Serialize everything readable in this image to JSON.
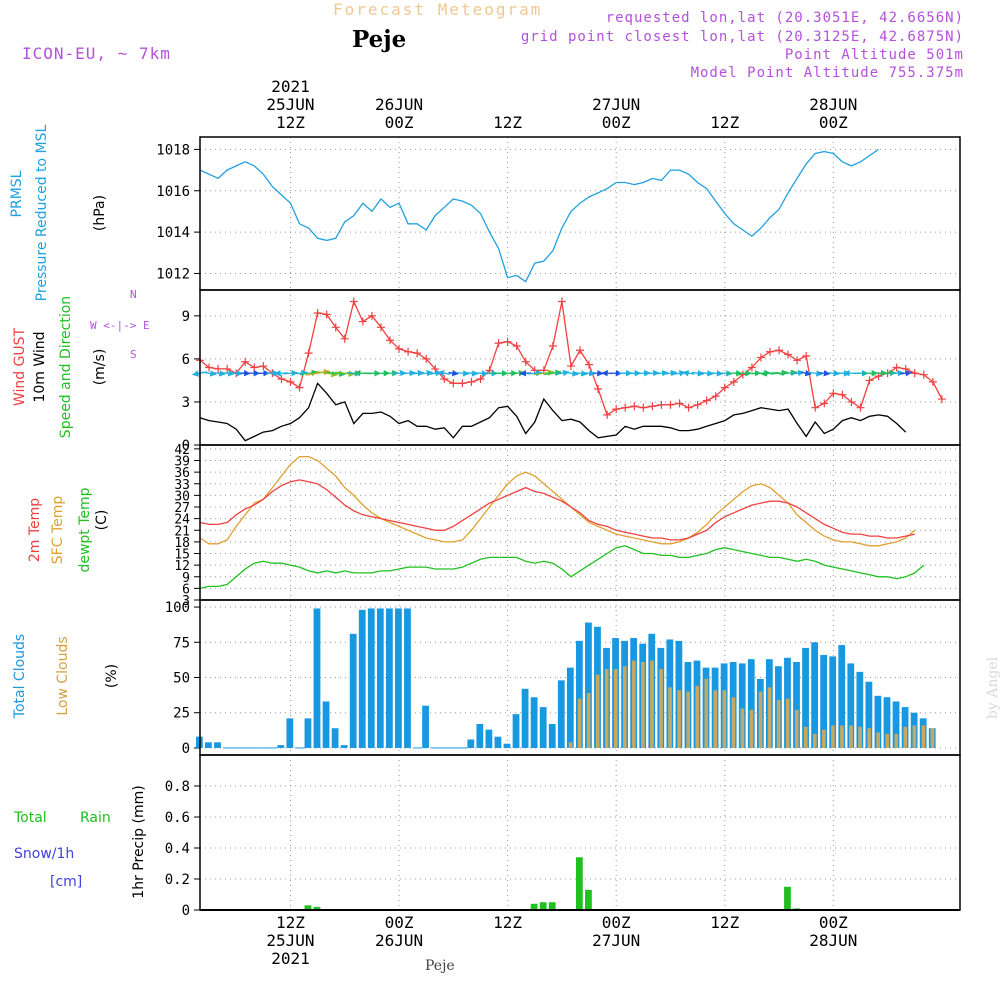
{
  "header": {
    "title": "Forecast Meteogram",
    "station": "Peje",
    "model": "ICON-EU, ~ 7km",
    "requested": "requested lon,lat (20.3051E, 42.6656N)",
    "gridpoint": "grid point closest lon,lat (20.3125E, 42.6875N)",
    "point_alt": "Point Altitude 501m",
    "model_alt": "Model Point Altitude 755.375m"
  },
  "top_axis": [
    {
      "line1": "2021",
      "line2": "25JUN",
      "line3": "12Z"
    },
    {
      "line1": "",
      "line2": "26JUN",
      "line3": "00Z"
    },
    {
      "line1": "",
      "line2": "",
      "line3": "12Z"
    },
    {
      "line1": "",
      "line2": "27JUN",
      "line3": "00Z"
    },
    {
      "line1": "",
      "line2": "",
      "line3": "12Z"
    },
    {
      "line1": "",
      "line2": "28JUN",
      "line3": "00Z"
    }
  ],
  "bottom_axis": [
    {
      "line1": "12Z",
      "line2": "25JUN",
      "line3": "2021"
    },
    {
      "line1": "00Z",
      "line2": "26JUN",
      "line3": ""
    },
    {
      "line1": "12Z",
      "line2": "",
      "line3": ""
    },
    {
      "line1": "00Z",
      "line2": "27JUN",
      "line3": ""
    },
    {
      "line1": "12Z",
      "line2": "",
      "line3": ""
    },
    {
      "line1": "00Z",
      "line2": "28JUN",
      "line3": ""
    }
  ],
  "footer": {
    "station": "Peje",
    "watermark": "by Angel"
  },
  "colors": {
    "pressure": "#20a0e0",
    "gust": "#f04040",
    "wind": "#000000",
    "temp2m": "#f04040",
    "sfc": "#e0a030",
    "dewpt": "#20c020",
    "total_cloud": "#1898e0",
    "low_cloud": "#c8a860",
    "rain": "#20c020",
    "snow": "#4040e0",
    "label_purple": "#b450dc"
  },
  "panels": {
    "pressure": {
      "label1": "PRMSL",
      "label2": "Pressure Reduced to MSL",
      "unit": "(hPa)",
      "ticks": [
        "1012",
        "1014",
        "1016",
        "1018"
      ]
    },
    "wind": {
      "label_gust": "Wind GUST",
      "label_10m": "10m Wind",
      "label_dir": "Speed and Direction",
      "unit": "(m/s)",
      "ticks": [
        "0",
        "3",
        "6",
        "9"
      ],
      "compass_n": "N",
      "compass_s": "S",
      "compass_we": "W <-|-> E"
    },
    "temp": {
      "label_2m": "2m Temp",
      "label_sfc": "SFC Temp",
      "label_dew": "dewpt Temp",
      "unit": "(C)",
      "ticks": [
        "3",
        "6",
        "9",
        "12",
        "15",
        "18",
        "21",
        "24",
        "27",
        "30",
        "33",
        "36",
        "39",
        "42"
      ]
    },
    "cloud": {
      "label_total": "Total Clouds",
      "label_low": "Low Clouds",
      "unit": "(%)",
      "ticks": [
        "0",
        "25",
        "50",
        "75",
        "100"
      ]
    },
    "precip": {
      "label_total": "Total",
      "label_rain": "Rain",
      "label_snow": "Snow/1h",
      "label_cm": "[cm]",
      "unit": "1hr Precip (mm)",
      "ticks": [
        "0",
        "0.2",
        "0.4",
        "0.6",
        "0.8"
      ]
    }
  },
  "chart_data": {
    "type": "line",
    "title": "Forecast Meteogram",
    "x_hours_note": "hours from 25JUN 00Z, hourly",
    "x_start_hour": 2,
    "pressure_hPa": [
      1017.0,
      1016.8,
      1016.6,
      1017.0,
      1017.2,
      1017.4,
      1017.2,
      1016.8,
      1016.2,
      1015.8,
      1015.4,
      1014.4,
      1014.2,
      1013.7,
      1013.6,
      1013.7,
      1014.5,
      1014.8,
      1015.4,
      1015.0,
      1015.6,
      1015.2,
      1015.4,
      1014.4,
      1014.4,
      1014.1,
      1014.8,
      1015.2,
      1015.6,
      1015.5,
      1015.3,
      1014.9,
      1014.0,
      1013.2,
      1011.8,
      1011.9,
      1011.6,
      1012.5,
      1012.6,
      1013.1,
      1014.2,
      1015.0,
      1015.4,
      1015.7,
      1015.9,
      1016.1,
      1016.4,
      1016.4,
      1016.3,
      1016.4,
      1016.6,
      1016.5,
      1017.0,
      1017.0,
      1016.8,
      1016.4,
      1016.1,
      1015.5,
      1014.9,
      1014.4,
      1014.1,
      1013.8,
      1014.2,
      1014.7,
      1015.1,
      1015.9,
      1016.6,
      1017.3,
      1017.8,
      1017.9,
      1017.8,
      1017.4,
      1017.2,
      1017.4,
      1017.7,
      1018.0
    ],
    "wind_gust_ms": [
      5.9,
      5.4,
      5.3,
      5.3,
      5.0,
      5.8,
      5.4,
      5.5,
      5.0,
      4.6,
      4.4,
      4.0,
      6.4,
      9.2,
      9.1,
      8.2,
      7.4,
      10.0,
      8.6,
      9.0,
      8.2,
      7.3,
      6.7,
      6.5,
      6.4,
      6.0,
      5.3,
      4.6,
      4.3,
      4.3,
      4.4,
      4.6,
      5.2,
      7.1,
      7.2,
      6.9,
      5.8,
      5.2,
      5.2,
      6.9,
      10.0,
      5.5,
      6.6,
      5.6,
      3.9,
      2.1,
      2.5,
      2.6,
      2.7,
      2.6,
      2.7,
      2.8,
      2.8,
      2.9,
      2.6,
      2.8,
      3.1,
      3.4,
      4.0,
      4.4,
      4.9,
      5.4,
      6.1,
      6.5,
      6.6,
      6.3,
      5.9,
      6.2,
      2.6,
      2.9,
      3.6,
      3.5,
      3.0,
      2.6,
      4.5,
      4.8,
      5.0,
      5.4,
      5.3,
      5.0,
      4.9,
      4.4,
      3.2
    ],
    "wind_10m_ms": [
      1.9,
      1.7,
      1.6,
      1.5,
      1.1,
      0.3,
      0.6,
      0.9,
      1.0,
      1.3,
      1.5,
      1.9,
      2.6,
      4.3,
      3.6,
      2.8,
      3.0,
      1.5,
      2.2,
      2.2,
      2.3,
      2.0,
      1.5,
      1.7,
      1.3,
      1.3,
      1.1,
      1.2,
      0.5,
      1.3,
      1.3,
      1.6,
      1.9,
      2.6,
      2.7,
      2.0,
      0.8,
      1.6,
      3.2,
      2.4,
      1.7,
      1.8,
      1.6,
      1.0,
      0.5,
      0.6,
      0.7,
      1.3,
      1.1,
      1.3,
      1.3,
      1.3,
      1.2,
      1.0,
      1.0,
      1.1,
      1.3,
      1.5,
      1.7,
      2.1,
      2.2,
      2.4,
      2.6,
      2.5,
      2.4,
      2.5,
      1.5,
      0.6,
      1.6,
      0.8,
      1.1,
      1.7,
      1.9,
      1.7,
      2.0,
      2.1,
      2.0,
      1.5,
      0.9
    ],
    "temp_2m_C": [
      23,
      22.5,
      22.5,
      23,
      25,
      26.5,
      27.5,
      29,
      31,
      32.5,
      33.5,
      34,
      33.5,
      33,
      31.5,
      29.5,
      27.5,
      26,
      25,
      24.5,
      24,
      23.5,
      23,
      22.5,
      22,
      21.5,
      21,
      21,
      22,
      23.5,
      25,
      26.5,
      28,
      29,
      30,
      31,
      32,
      31,
      30.5,
      29.5,
      28.5,
      27,
      25.5,
      23.5,
      22.5,
      22,
      21,
      20.5,
      20,
      19.5,
      19,
      19,
      18.5,
      18.5,
      19,
      20,
      21,
      23,
      24.5,
      25.5,
      26.5,
      27.5,
      28,
      28.5,
      28.5,
      28,
      27,
      25.5,
      24,
      22.5,
      21.5,
      20.5,
      20,
      20,
      19.5,
      19.5,
      19,
      19,
      19.5,
      20
    ],
    "temp_sfc_C": [
      19,
      17.5,
      17.5,
      18.5,
      22,
      25,
      28,
      29,
      32,
      35,
      38,
      40,
      40,
      39,
      37,
      35,
      32,
      30,
      27.5,
      25.5,
      24,
      23,
      22,
      21,
      20,
      19,
      18.5,
      18,
      18,
      18.5,
      21,
      24,
      27,
      30,
      33,
      35,
      36,
      35,
      33,
      31,
      29,
      27,
      25,
      23,
      22,
      21,
      20,
      19.5,
      19,
      18.5,
      18,
      17.5,
      17.5,
      18,
      19,
      20.5,
      22.5,
      25,
      27,
      29,
      31,
      32.5,
      33,
      32,
      30,
      28,
      25,
      23,
      21,
      19.5,
      18.5,
      18,
      18,
      17.5,
      17,
      17,
      17.5,
      18,
      19,
      21
    ],
    "dewpt_C": [
      6,
      6.5,
      6.5,
      7,
      9,
      11,
      12.5,
      13,
      12.5,
      12.5,
      12,
      11.5,
      10.5,
      10,
      10.5,
      10,
      10.5,
      10,
      10,
      10,
      10.5,
      10.5,
      11,
      11.5,
      11.5,
      11.5,
      11,
      11,
      11,
      11.5,
      12.5,
      13.5,
      14,
      14,
      14,
      14,
      13,
      12.5,
      13,
      12.5,
      11,
      9,
      10.5,
      12,
      13.5,
      15,
      16.5,
      17,
      16,
      15,
      15,
      14.5,
      14.5,
      14,
      14,
      14.5,
      15,
      16,
      16.5,
      16,
      15.5,
      15,
      14.5,
      14,
      14,
      13.5,
      13,
      13.5,
      13,
      12,
      11.5,
      11,
      10.5,
      10,
      9.5,
      9,
      9,
      8.5,
      9,
      10,
      12
    ],
    "total_clouds_pct": [
      8,
      4,
      4,
      0,
      0,
      0,
      0,
      0,
      0,
      2,
      21,
      0,
      21,
      99,
      33,
      14,
      2,
      81,
      98,
      99,
      99,
      99,
      99,
      99,
      0,
      30,
      0,
      0,
      0,
      0,
      6,
      17,
      13,
      8,
      3,
      24,
      42,
      36,
      29,
      17,
      48,
      57,
      76,
      89,
      86,
      71,
      78,
      76,
      78,
      74,
      81,
      71,
      77,
      76,
      61,
      62,
      57,
      57,
      60,
      61,
      60,
      63,
      49,
      63,
      58,
      64,
      61,
      71,
      75,
      66,
      65,
      73,
      60,
      54,
      47,
      37,
      36,
      33,
      29,
      25,
      21,
      14
    ],
    "low_clouds_pct": [
      0,
      0,
      0,
      0,
      0,
      0,
      0,
      0,
      0,
      0,
      0,
      0,
      0,
      0,
      0,
      0,
      0,
      0,
      0,
      0,
      0,
      0,
      0,
      0,
      0,
      0,
      0,
      0,
      0,
      0,
      0,
      0,
      0,
      0,
      0,
      0,
      0,
      0,
      0,
      0,
      0,
      4,
      35,
      39,
      52,
      56,
      56,
      58,
      62,
      61,
      62,
      56,
      43,
      41,
      40,
      44,
      49,
      41,
      41,
      36,
      28,
      27,
      40,
      43,
      34,
      35,
      27,
      15,
      10,
      13,
      16,
      16,
      16,
      15,
      14,
      11,
      10,
      10,
      15,
      16,
      16,
      14
    ],
    "total_precip_mm": [
      0,
      0,
      0,
      0,
      0,
      0,
      0,
      0,
      0,
      0,
      0,
      0,
      0.03,
      0.02,
      0,
      0,
      0,
      0,
      0,
      0,
      0,
      0,
      0,
      0,
      0,
      0,
      0,
      0,
      0,
      0,
      0,
      0,
      0,
      0,
      0,
      0,
      0,
      0.04,
      0.05,
      0.05,
      0,
      0,
      0.34,
      0.13,
      0,
      0,
      0,
      0,
      0,
      0,
      0,
      0,
      0,
      0,
      0,
      0,
      0,
      0,
      0,
      0,
      0,
      0,
      0,
      0,
      0,
      0.15,
      0.01,
      0,
      0,
      0,
      0,
      0,
      0,
      0,
      0,
      0,
      0,
      0,
      0,
      0,
      0,
      0
    ],
    "pressure_ylim": [
      1011.2,
      1018.6
    ],
    "wind_ylim": [
      0,
      10.8
    ],
    "temp_ylim": [
      3,
      43
    ],
    "cloud_ylim": [
      -5,
      105
    ],
    "precip_ylim": [
      0,
      1.0
    ]
  }
}
